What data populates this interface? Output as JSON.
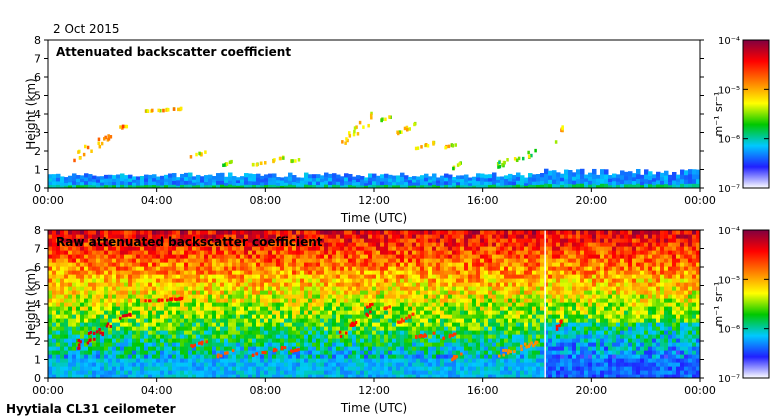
{
  "date": "2 Oct 2015",
  "footer": "Hyytiala CL31 ceilometer",
  "chart_data": [
    {
      "type": "heatmap",
      "title": "Attenuated backscatter coefficient",
      "xlabel": "Time (UTC)",
      "ylabel": "Height (km)",
      "xticks": [
        "00:00",
        "04:00",
        "08:00",
        "12:00",
        "16:00",
        "20:00",
        "00:00"
      ],
      "yticks": [
        "0",
        "1",
        "2",
        "3",
        "4",
        "5",
        "6",
        "7",
        "8"
      ],
      "xlim_hours": [
        0,
        24
      ],
      "ylim_km": [
        0,
        8
      ],
      "colorbar": {
        "label": "m⁻¹ sr⁻¹",
        "ticks": [
          "10⁻⁷",
          "10⁻⁶",
          "10⁻⁵",
          "10⁻⁴"
        ],
        "range_log10": [
          -7,
          -4
        ],
        "colors": [
          "#ffffff",
          "#2020ff",
          "#00c8ff",
          "#00c800",
          "#ffff00",
          "#ff8000",
          "#ff0000",
          "#800040"
        ]
      },
      "cloud_layers": [
        {
          "t": [
            0.9,
            2.3
          ],
          "h": [
            1.5,
            3.2
          ],
          "level": 0.8
        },
        {
          "t": [
            2.6,
            3.1
          ],
          "h": [
            3.3,
            3.6
          ],
          "level": 0.8
        },
        {
          "t": [
            3.5,
            4.9
          ],
          "h": [
            4.2,
            4.4
          ],
          "level": 0.75
        },
        {
          "t": [
            5.2,
            5.8
          ],
          "h": [
            1.7,
            2.1
          ],
          "level": 0.7
        },
        {
          "t": [
            6.2,
            6.8
          ],
          "h": [
            1.2,
            1.6
          ],
          "level": 0.65
        },
        {
          "t": [
            7.5,
            8.0
          ],
          "h": [
            1.3,
            1.5
          ],
          "level": 0.7
        },
        {
          "t": [
            8.2,
            8.7
          ],
          "h": [
            1.5,
            1.8
          ],
          "level": 0.7
        },
        {
          "t": [
            8.9,
            9.3
          ],
          "h": [
            1.5,
            1.7
          ],
          "level": 0.7
        },
        {
          "t": [
            10.7,
            11.9
          ],
          "h": [
            2.2,
            4.2
          ],
          "level": 0.75
        },
        {
          "t": [
            12.2,
            12.6
          ],
          "h": [
            3.7,
            4.0
          ],
          "level": 0.7
        },
        {
          "t": [
            12.8,
            13.5
          ],
          "h": [
            3.0,
            3.6
          ],
          "level": 0.7
        },
        {
          "t": [
            13.5,
            14.2
          ],
          "h": [
            2.2,
            2.6
          ],
          "level": 0.7
        },
        {
          "t": [
            14.5,
            15.0
          ],
          "h": [
            2.2,
            2.5
          ],
          "level": 0.7
        },
        {
          "t": [
            14.8,
            15.2
          ],
          "h": [
            1.0,
            1.5
          ],
          "level": 0.65
        },
        {
          "t": [
            16.5,
            18.0
          ],
          "h": [
            1.2,
            2.2
          ],
          "level": 0.6
        },
        {
          "t": [
            18.6,
            18.9
          ],
          "h": [
            2.4,
            3.4
          ],
          "level": 0.75
        }
      ],
      "boundary_layer_top_km": 0.7
    },
    {
      "type": "heatmap",
      "title": "Raw attenuated backscatter coefficient",
      "xlabel": "Time (UTC)",
      "ylabel": "Height (km)",
      "xticks": [
        "00:00",
        "04:00",
        "08:00",
        "12:00",
        "16:00",
        "20:00",
        "00:00"
      ],
      "yticks": [
        "0",
        "1",
        "2",
        "3",
        "4",
        "5",
        "6",
        "7",
        "8"
      ],
      "xlim_hours": [
        0,
        24
      ],
      "ylim_km": [
        0,
        8
      ],
      "colorbar": {
        "label": "m⁻¹ sr⁻¹",
        "ticks": [
          "10⁻⁷",
          "10⁻⁶",
          "10⁻⁵",
          "10⁻⁴"
        ],
        "range_log10": [
          -7,
          -4
        ],
        "colors": [
          "#ffffff",
          "#2020ff",
          "#00c8ff",
          "#00c800",
          "#ffff00",
          "#ff8000",
          "#ff0000",
          "#800040"
        ]
      },
      "data_gap_hours": 18.3
    }
  ]
}
